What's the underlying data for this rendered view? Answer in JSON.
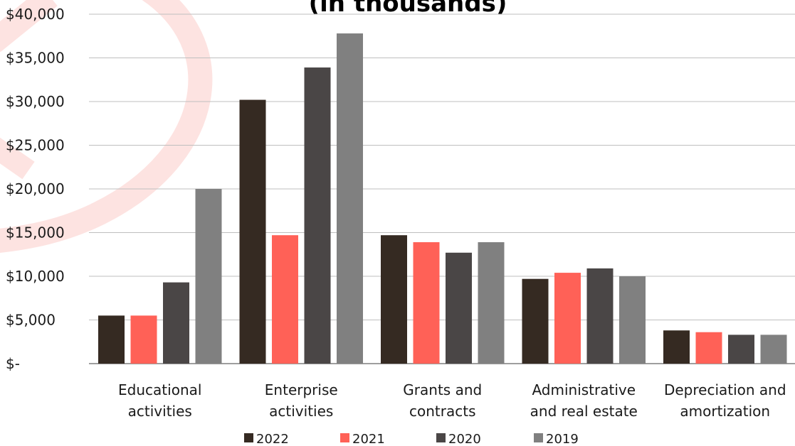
{
  "chart_data": {
    "type": "bar",
    "title": "(in thousands)",
    "categories": [
      [
        "Educational",
        "activities"
      ],
      [
        "Enterprise",
        "activities"
      ],
      [
        "Grants and",
        "contracts"
      ],
      [
        "Administrative",
        "and real estate"
      ],
      [
        "Depreciation and",
        "amortization"
      ]
    ],
    "series": [
      {
        "name": "2022",
        "color": "#352a22",
        "values": [
          5500,
          30200,
          14700,
          9700,
          3800
        ]
      },
      {
        "name": "2021",
        "color": "#ff6157",
        "values": [
          5500,
          14700,
          13900,
          10400,
          3600
        ]
      },
      {
        "name": "2020",
        "color": "#4a4646",
        "values": [
          9300,
          33900,
          12700,
          10900,
          3300
        ]
      },
      {
        "name": "2019",
        "color": "#808080",
        "values": [
          20000,
          37800,
          13900,
          10000,
          3300
        ]
      }
    ],
    "ylim": [
      0,
      40000
    ],
    "y_ticks": [
      {
        "value": 0,
        "label": "$-"
      },
      {
        "value": 5000,
        "label": "$5,000"
      },
      {
        "value": 10000,
        "label": "$10,000"
      },
      {
        "value": 15000,
        "label": "$15,000"
      },
      {
        "value": 20000,
        "label": "$20,000"
      },
      {
        "value": 25000,
        "label": "$25,000"
      },
      {
        "value": 30000,
        "label": "$30,000"
      },
      {
        "value": 35000,
        "label": "$35,000"
      },
      {
        "value": 40000,
        "label": "$40,000"
      }
    ],
    "grid": true,
    "legend_position": "bottom"
  }
}
